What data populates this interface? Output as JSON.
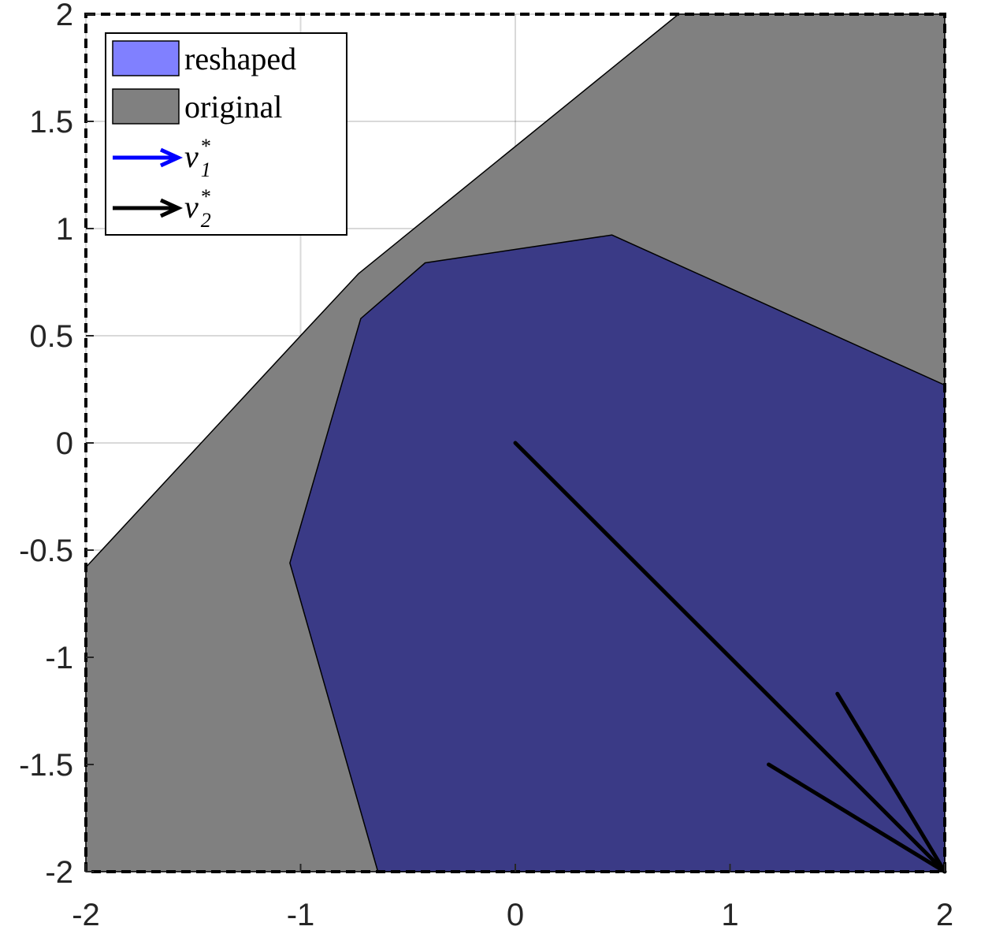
{
  "chart_data": {
    "type": "area",
    "title": "",
    "xlabel": "",
    "ylabel": "",
    "xlim": [
      -2,
      2
    ],
    "ylim": [
      -2,
      2
    ],
    "grid": true,
    "box_style": "dashed",
    "legend_placement": "top-left",
    "x_ticks": [
      "-2",
      "-1",
      "0",
      "1",
      "2"
    ],
    "y_ticks": [
      "2",
      "1.5",
      "1",
      "0.5",
      "0",
      "-0.5",
      "-1",
      "-1.5",
      "-2"
    ],
    "series": [
      {
        "name": "reshaped",
        "kind": "polygon",
        "color": "#8080ff",
        "points": [
          [
            -0.64,
            -2
          ],
          [
            -1.05,
            -0.56
          ],
          [
            -0.72,
            0.58
          ],
          [
            -0.42,
            0.84
          ],
          [
            0.45,
            0.97
          ],
          [
            2,
            0.27
          ],
          [
            2,
            -2
          ]
        ]
      },
      {
        "name": "original",
        "kind": "polygon",
        "color": "#808080",
        "points": [
          [
            -2,
            -2
          ],
          [
            -2,
            -0.58
          ],
          [
            -1.0,
            0.5
          ],
          [
            -0.73,
            0.79
          ],
          [
            0.76,
            2
          ],
          [
            2,
            2
          ],
          [
            2,
            -2
          ]
        ]
      },
      {
        "name": "v1*",
        "kind": "arrow",
        "color": "#0000ff",
        "points": []
      },
      {
        "name": "v2*",
        "kind": "arrow",
        "color": "#000000",
        "points": [
          [
            0,
            0
          ],
          [
            2,
            -2
          ]
        ],
        "head": [
          [
            1.18,
            -1.5
          ],
          [
            2,
            -2
          ],
          [
            1.5,
            -1.17
          ]
        ]
      }
    ],
    "legend": [
      {
        "label": "reshaped",
        "symbol": "patch",
        "color": "#8080ff"
      },
      {
        "label": "original",
        "symbol": "patch",
        "color": "#808080"
      },
      {
        "math": "v",
        "sup": "*",
        "sub": "1",
        "symbol": "arrow",
        "color": "#0000ff"
      },
      {
        "math": "v",
        "sup": "*",
        "sub": "2",
        "symbol": "arrow",
        "color": "#000000"
      }
    ]
  }
}
